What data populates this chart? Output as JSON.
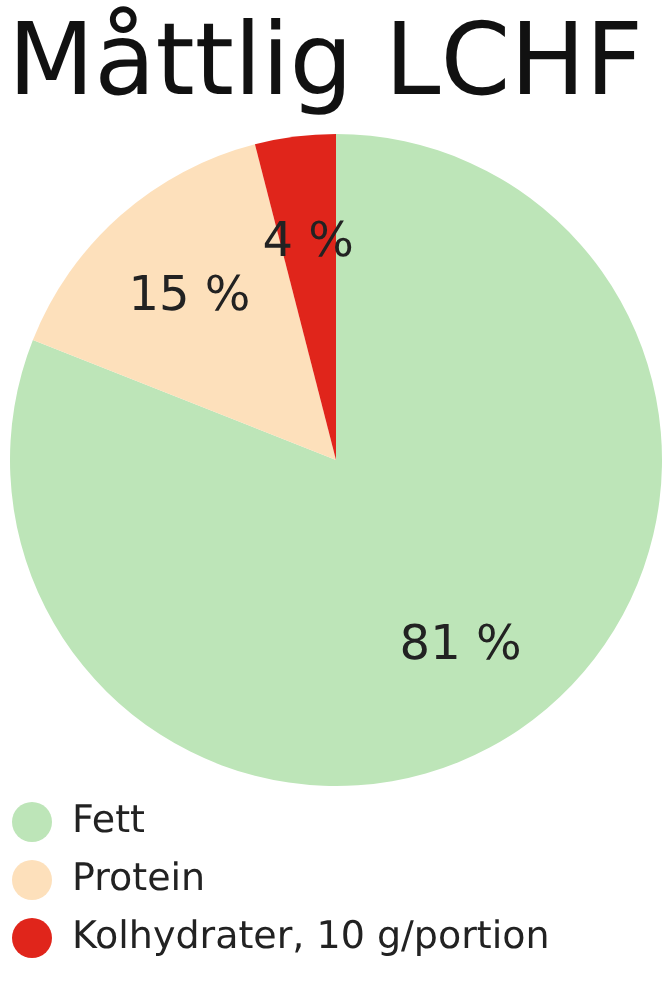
{
  "chart_data": {
    "type": "pie",
    "title": "Måttlig LCHF",
    "categories": [
      "Fett",
      "Protein",
      "Kolhydrater, 10 g/portion"
    ],
    "values": [
      81,
      15,
      4
    ],
    "colors": [
      "#bde5b8",
      "#fde0bb",
      "#e0251b"
    ],
    "value_labels": [
      "81 %",
      "15 %",
      "4 %"
    ],
    "legend": "bottom left"
  }
}
